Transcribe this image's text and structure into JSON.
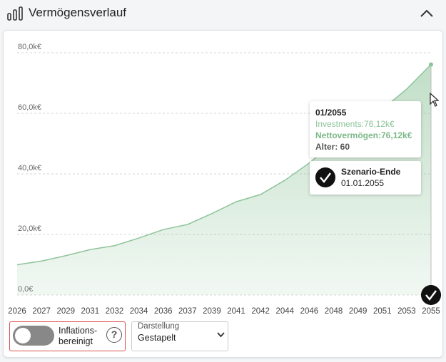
{
  "header": {
    "title": "Vermögensverlauf"
  },
  "chart_data": {
    "type": "area",
    "x": [
      2026,
      2027,
      2029,
      2031,
      2032,
      2034,
      2036,
      2037,
      2039,
      2041,
      2042,
      2044,
      2046,
      2048,
      2049,
      2051,
      2053,
      2055
    ],
    "series": [
      {
        "name": "Investments",
        "values": [
          10.0,
          11.2,
          13.0,
          15.0,
          16.3,
          18.8,
          21.6,
          23.3,
          26.9,
          30.8,
          33.2,
          37.9,
          43.6,
          50.2,
          53.7,
          61.3,
          68.0,
          76.12
        ]
      }
    ],
    "ylim": [
      0,
      80
    ],
    "yticks": [
      "80,0k€",
      "60,0k€",
      "40,0k€",
      "20,0k€",
      "0,0€"
    ],
    "xticks": [
      "2026",
      "2027",
      "2029",
      "2031",
      "2032",
      "2034",
      "2036",
      "2037",
      "2039",
      "2041",
      "2042",
      "2044",
      "2046",
      "2048",
      "2049",
      "2051",
      "2053",
      "2055"
    ],
    "grid": true,
    "color": "#8ec49a"
  },
  "tooltip": {
    "date": "01/2055",
    "investments": "Investments:76,12k€",
    "net": "Nettovermögen:76,12k€",
    "age": "Alter: 60"
  },
  "scenario_end": {
    "title": "Szenario-Ende",
    "date": "01.01.2055"
  },
  "controls": {
    "inflation_label": "Inflations-",
    "inflation_label2": "bereinigt",
    "inflation_on": false,
    "help": "?",
    "display_label": "Darstellung",
    "display_value": "Gestapelt"
  }
}
